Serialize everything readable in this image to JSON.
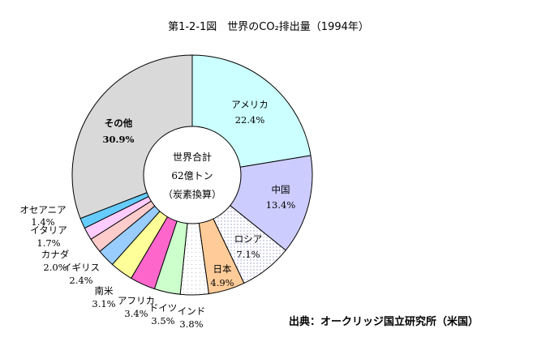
{
  "title": "第1-2-1図　世界のCO₂排出量（1994年）",
  "source": "出典：オークリッジ国立研究所（米国）",
  "center": {
    "line1": "世界合計",
    "line2": "62億トン",
    "line3": "（炭素換算）"
  },
  "chart_data": {
    "type": "pie",
    "title": "第1-2-1図　世界のCO₂排出量（1994年）",
    "unit": "%",
    "slices": [
      {
        "name": "アメリカ",
        "value": 22.4,
        "label": "22.4%",
        "color": "#ccffff"
      },
      {
        "name": "中国",
        "value": 13.4,
        "label": "13.4%",
        "color": "#ccccff"
      },
      {
        "name": "ロシア",
        "value": 7.1,
        "label": "7.1%",
        "color": "#ffffff"
      },
      {
        "name": "日本",
        "value": 4.9,
        "label": "4.9%",
        "color": "#ffcc99"
      },
      {
        "name": "インド",
        "value": 3.8,
        "label": "3.8%",
        "color": "#ffffff"
      },
      {
        "name": "ドイツ",
        "value": 3.5,
        "label": "3.5%",
        "color": "#ccffcc"
      },
      {
        "name": "アフリカ",
        "value": 3.4,
        "label": "3.4%",
        "color": "#ff66cc"
      },
      {
        "name": "南米",
        "value": 3.1,
        "label": "3.1%",
        "color": "#ffff99"
      },
      {
        "name": "イギリス",
        "value": 2.4,
        "label": "2.4%",
        "color": "#99ccff"
      },
      {
        "name": "カナダ",
        "value": 2.0,
        "label": "2.0%",
        "color": "#ffcccc"
      },
      {
        "name": "イタリア",
        "value": 1.7,
        "label": "1.7%",
        "color": "#ffccff"
      },
      {
        "name": "オセアニア",
        "value": 1.4,
        "label": "1.4%",
        "color": "#66ccff"
      },
      {
        "name": "その他",
        "value": 30.9,
        "label": "30.9%",
        "color": "#d9d9d9"
      }
    ]
  }
}
